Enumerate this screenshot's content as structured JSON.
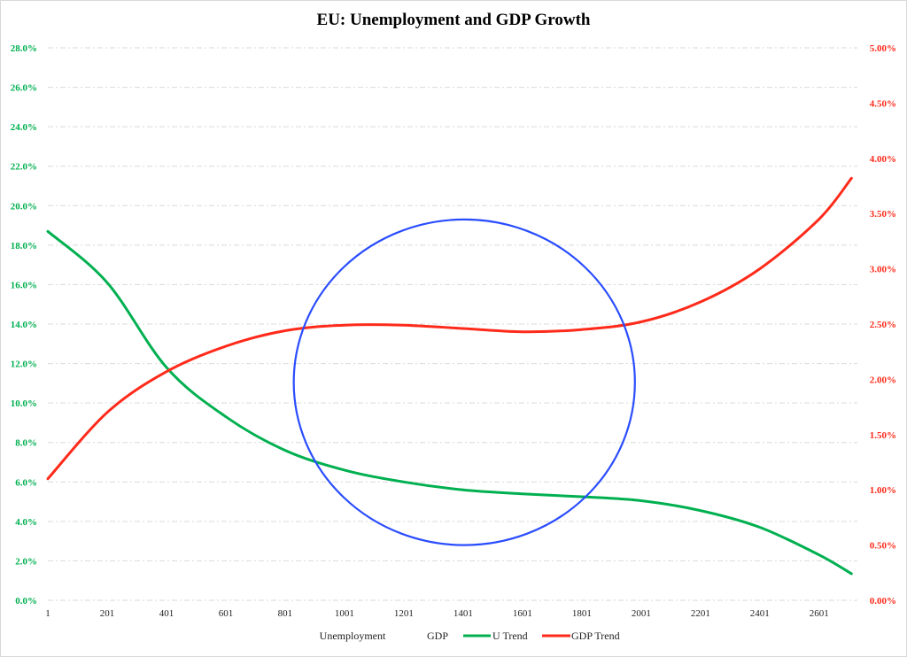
{
  "chart_data": {
    "type": "line",
    "title": "EU: Unemployment and GDP Growth",
    "xlabel": "",
    "ylabel_left": "",
    "ylabel_right": "",
    "xlim": [
      1,
      2730
    ],
    "ylim_left": [
      0,
      28
    ],
    "ylim_right": [
      0,
      5
    ],
    "grid": true,
    "x_ticks": [
      "1",
      "201",
      "401",
      "601",
      "801",
      "1001",
      "1201",
      "1401",
      "1601",
      "1801",
      "2001",
      "2201",
      "2401",
      "2601"
    ],
    "y_ticks_left": [
      "0.0%",
      "2.0%",
      "4.0%",
      "6.0%",
      "8.0%",
      "10.0%",
      "12.0%",
      "14.0%",
      "16.0%",
      "18.0%",
      "20.0%",
      "22.0%",
      "24.0%",
      "26.0%",
      "28.0%"
    ],
    "y_ticks_right": [
      "0.00%",
      "0.50%",
      "1.00%",
      "1.50%",
      "2.00%",
      "2.50%",
      "3.00%",
      "3.50%",
      "4.00%",
      "4.50%",
      "5.00%"
    ],
    "legend_position": "bottom",
    "legend": [
      "Unemployment",
      "GDP",
      "U Trend",
      "GDP Trend"
    ],
    "series": [
      {
        "name": "U Trend",
        "axis": "left",
        "color": "#00b050",
        "x": [
          1,
          201,
          401,
          601,
          801,
          1001,
          1201,
          1401,
          1601,
          1801,
          2001,
          2201,
          2401,
          2601,
          2710
        ],
        "values": [
          18.7,
          16.1,
          11.8,
          9.3,
          7.6,
          6.6,
          6.0,
          5.6,
          5.4,
          5.25,
          5.05,
          4.55,
          3.7,
          2.3,
          1.35
        ]
      },
      {
        "name": "GDP Trend",
        "axis": "right",
        "color": "#ff2a1a",
        "x": [
          1,
          201,
          401,
          601,
          801,
          1001,
          1201,
          1401,
          1601,
          1801,
          2001,
          2201,
          2401,
          2601,
          2710
        ],
        "values": [
          1.1,
          1.7,
          2.07,
          2.3,
          2.44,
          2.49,
          2.49,
          2.46,
          2.43,
          2.45,
          2.52,
          2.7,
          3.0,
          3.45,
          3.82
        ]
      }
    ],
    "annotation": {
      "shape": "ellipse",
      "color": "#2a4dff",
      "x_range": [
        830,
        1980
      ],
      "y_range_left": [
        2.8,
        19.3
      ]
    },
    "colors": {
      "left_axis": "#00b050",
      "right_axis": "#ff2a1a",
      "grid": "#d9d9d9"
    }
  }
}
